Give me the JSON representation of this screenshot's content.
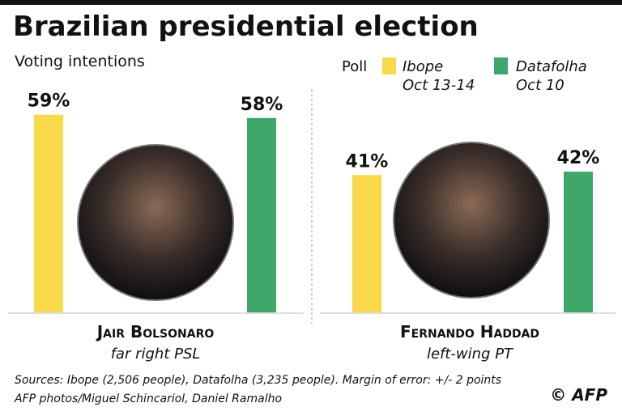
{
  "chart_data": {
    "type": "bar",
    "title": "Brazilian presidential election",
    "subtitle": "Voting intentions",
    "legend_title": "Poll",
    "categories": [
      "Jair Bolsonaro",
      "Fernando Haddad"
    ],
    "descriptions": [
      "far right PSL",
      "left-wing PT"
    ],
    "series": [
      {
        "name": "Ibope",
        "date": "Oct 13-14",
        "color": "#f9d84a",
        "values": [
          59,
          41
        ],
        "value_labels": [
          "59%",
          "41%"
        ]
      },
      {
        "name": "Datafolha",
        "date": "Oct 10",
        "color": "#3fa76a",
        "values": [
          58,
          42
        ],
        "value_labels": [
          "58%",
          "42%"
        ]
      }
    ],
    "notes": [
      "Sources: Ibope (2,506 people), Datafolha (3,235 people). Margin of error: +/- 2 points",
      "AFP photos/Miguel Schincariol, Daniel Ramalho"
    ],
    "credit": "© AFP"
  }
}
